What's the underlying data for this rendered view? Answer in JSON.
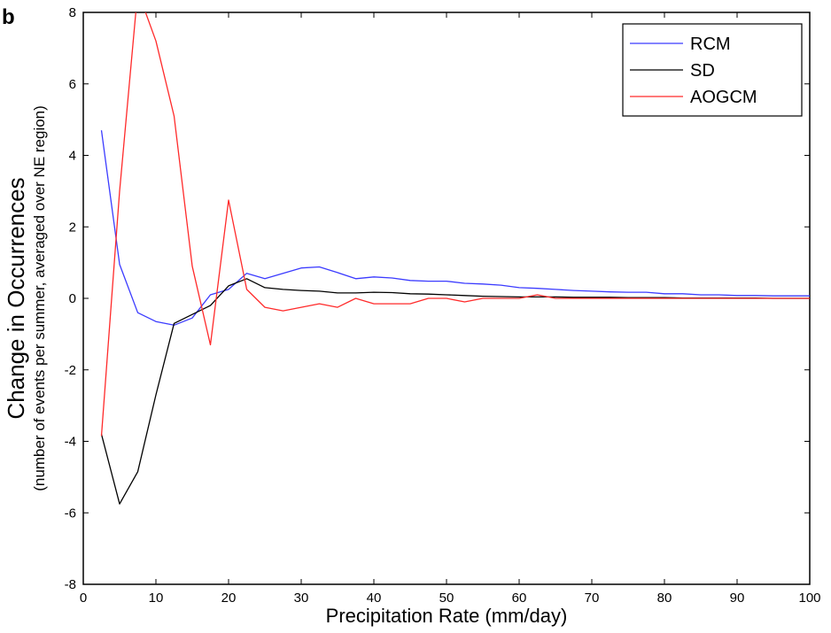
{
  "panel_label": "b",
  "chart_data": {
    "type": "line",
    "xlabel": "Precipitation Rate (mm/day)",
    "ylabel": "Change in Occurrences",
    "ylabel_sub": "(number of events per summer, averaged over NE region)",
    "xlim": [
      0,
      100
    ],
    "ylim": [
      -8,
      8
    ],
    "xticks": [
      0,
      10,
      20,
      30,
      40,
      50,
      60,
      70,
      80,
      90,
      100
    ],
    "yticks": [
      -8,
      -6,
      -4,
      -2,
      0,
      2,
      4,
      6,
      8
    ],
    "grid": false,
    "legend_position": "top-right",
    "x": [
      2.5,
      5,
      7.5,
      10,
      12.5,
      15,
      17.5,
      20,
      22.5,
      25,
      27.5,
      30,
      32.5,
      35,
      37.5,
      40,
      42.5,
      45,
      47.5,
      50,
      52.5,
      55,
      57.5,
      60,
      62.5,
      65,
      67.5,
      70,
      72.5,
      75,
      77.5,
      80,
      82.5,
      85,
      87.5,
      90,
      92.5,
      95,
      97.5,
      100
    ],
    "series": [
      {
        "name": "RCM",
        "color": "#3b3bff",
        "values": [
          4.7,
          0.95,
          -0.4,
          -0.65,
          -0.75,
          -0.55,
          0.1,
          0.25,
          0.7,
          0.55,
          0.7,
          0.85,
          0.88,
          0.72,
          0.55,
          0.6,
          0.57,
          0.5,
          0.48,
          0.48,
          0.42,
          0.4,
          0.37,
          0.3,
          0.28,
          0.25,
          0.22,
          0.2,
          0.18,
          0.17,
          0.17,
          0.13,
          0.13,
          0.1,
          0.1,
          0.08,
          0.08,
          0.07,
          0.07,
          0.07
        ]
      },
      {
        "name": "SD",
        "color": "#000000",
        "values": [
          -3.8,
          -5.75,
          -4.85,
          -2.7,
          -0.7,
          -0.45,
          -0.2,
          0.35,
          0.55,
          0.3,
          0.25,
          0.22,
          0.2,
          0.15,
          0.15,
          0.17,
          0.16,
          0.13,
          0.12,
          0.1,
          0.08,
          0.06,
          0.05,
          0.04,
          0.04,
          0.04,
          0.03,
          0.03,
          0.03,
          0.02,
          0.02,
          0.02,
          0.01,
          0.01,
          0.01,
          0.01,
          0.01,
          0.0,
          0.0,
          0.0
        ]
      },
      {
        "name": "AOGCM",
        "color": "#ff2a2a",
        "values": [
          -3.85,
          3.0,
          8.6,
          7.2,
          5.1,
          0.9,
          -1.3,
          2.75,
          0.25,
          -0.25,
          -0.35,
          -0.25,
          -0.15,
          -0.25,
          0.0,
          -0.15,
          -0.15,
          -0.15,
          0.0,
          0.0,
          -0.1,
          0.0,
          0.0,
          0.0,
          0.1,
          0.0,
          0.0,
          0.0,
          0.0,
          0.0,
          0.0,
          0.0,
          0.0,
          0.0,
          0.0,
          0.0,
          0.0,
          0.0,
          0.0,
          0.0
        ]
      }
    ]
  }
}
